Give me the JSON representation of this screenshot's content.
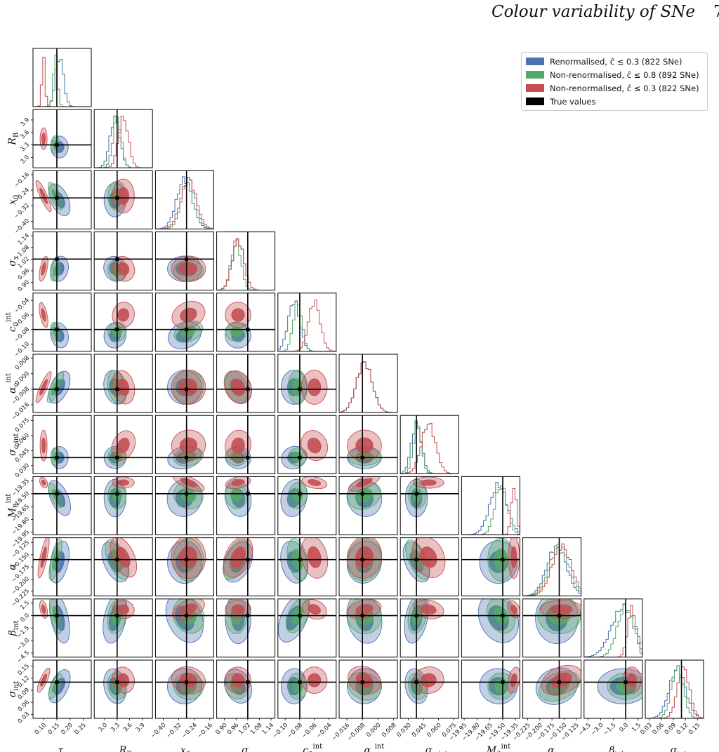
{
  "header": {
    "title": "Colour variability of SNe",
    "page": "7"
  },
  "colors": {
    "renorm": "#4c72b0",
    "nonrenorm08": "#55a868",
    "nonrenorm03": "#c44e52",
    "truth": "#000000"
  },
  "legend": {
    "placement": "top-right",
    "entries": [
      {
        "label": "Renormalised, ĉ ≤ 0.3 (822 SNe)",
        "color": "#4c72b0"
      },
      {
        "label": "Non-renormalised, ĉ ≤ 0.8 (892 SNe)",
        "color": "#55a868"
      },
      {
        "label": "Non-renormalised, ĉ ≤ 0.3 (822 SNe)",
        "color": "#c44e52"
      },
      {
        "label": "True values",
        "color": "#000000"
      }
    ]
  },
  "chart_data": {
    "type": "corner",
    "series": [
      {
        "name": "Renormalised, ĉ ≤ 0.3 (822 SNe)",
        "color": "#4c72b0",
        "means": [
          0.16,
          3.25,
          -0.29,
          0.97,
          -0.088,
          -0.007,
          0.038,
          -19.55,
          -0.165,
          -0.3,
          0.1
        ],
        "sds": [
          0.015,
          0.12,
          0.04,
          0.03,
          0.008,
          0.004,
          0.005,
          0.1,
          0.02,
          1.4,
          0.02
        ]
      },
      {
        "name": "Non-renormalised, ĉ ≤ 0.8 (892 SNe)",
        "color": "#55a868",
        "means": [
          0.145,
          3.3,
          -0.27,
          0.96,
          -0.083,
          -0.007,
          0.039,
          -19.52,
          -0.16,
          0.0,
          0.1
        ],
        "sds": [
          0.008,
          0.1,
          0.035,
          0.025,
          0.006,
          0.004,
          0.004,
          0.07,
          0.02,
          1.0,
          0.015
        ]
      },
      {
        "name": "Non-renormalised, ĉ ≤ 0.3 (822 SNe)",
        "color": "#c44e52",
        "means": [
          0.1,
          3.45,
          -0.27,
          0.97,
          -0.06,
          -0.007,
          0.05,
          -19.37,
          -0.155,
          0.75,
          0.115
        ],
        "sds": [
          0.006,
          0.12,
          0.04,
          0.03,
          0.008,
          0.004,
          0.007,
          0.03,
          0.02,
          0.5,
          0.015
        ]
      }
    ],
    "params": [
      {
        "label": "τ",
        "range": [
          0.06,
          0.28
        ],
        "ticks": [
          "0.10",
          "0.15",
          "0.20",
          "0.25"
        ],
        "truth": 0.15
      },
      {
        "label": "R_B",
        "range": [
          2.75,
          4.15
        ],
        "ticks": [
          "3.0",
          "3.3",
          "3.6",
          "3.9"
        ],
        "truth": 3.3
      },
      {
        "label": "x_0",
        "range": [
          -0.44,
          -0.14
        ],
        "ticks": [
          "−0.40",
          "−0.32",
          "−0.24",
          "−0.16"
        ],
        "truth": -0.28
      },
      {
        "label": "σ_x",
        "range": [
          0.86,
          1.16
        ],
        "ticks": [
          "0.90",
          "0.96",
          "1.02",
          "1.08",
          "1.14"
        ],
        "truth": 1.02
      },
      {
        "label": "c_0^int",
        "range": [
          -0.11,
          -0.03
        ],
        "ticks": [
          "−0.10",
          "−0.08",
          "−0.06",
          "−0.04"
        ],
        "truth": -0.08
      },
      {
        "label": "α_c^int",
        "range": [
          -0.02,
          0.01
        ],
        "ticks": [
          "−0.016",
          "−0.008",
          "0.000",
          "0.008"
        ],
        "truth": -0.008
      },
      {
        "label": "σ_c,int",
        "range": [
          0.022,
          0.08
        ],
        "ticks": [
          "0.030",
          "0.045",
          "0.060",
          "0.075"
        ],
        "truth": 0.038
      },
      {
        "label": "M_0^int",
        "range": [
          -19.98,
          -19.3
        ],
        "ticks": [
          "−19.95",
          "−19.80",
          "−19.65",
          "−19.50",
          "−19.35"
        ],
        "truth": -19.5
      },
      {
        "label": "α",
        "range": [
          -0.235,
          -0.115
        ],
        "ticks": [
          "−0.225",
          "−0.200",
          "−0.175",
          "−0.150",
          "−0.125"
        ],
        "truth": -0.16
      },
      {
        "label": "β_int",
        "range": [
          -5.0,
          2.0
        ],
        "ticks": [
          "−4.5",
          "−3.0",
          "−1.5",
          "0.0",
          "1.5"
        ],
        "truth": 0.0
      },
      {
        "label": "σ_int",
        "range": [
          0.02,
          0.165
        ],
        "ticks": [
          "0.03",
          "0.06",
          "0.09",
          "0.12",
          "0.15"
        ],
        "truth": 0.11
      }
    ]
  }
}
